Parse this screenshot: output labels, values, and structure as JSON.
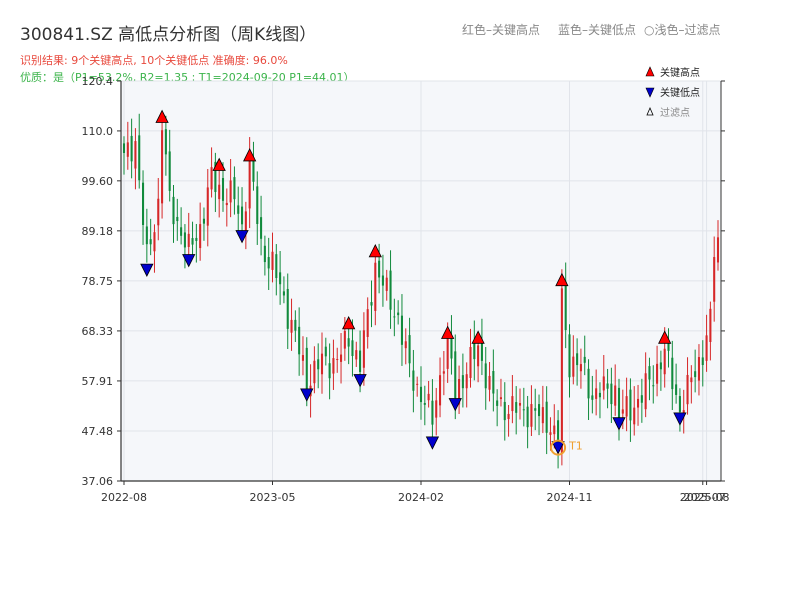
{
  "header": {
    "title": "300841.SZ 高低点分析图（周K线图）",
    "legend_red": "红色–关键高点",
    "legend_blue": "蓝色–关键低点",
    "legend_light": "○浅色–过滤点",
    "result_line": "识别结果: 9个关键高点, 10个关键低点  准确度: 96.0%",
    "quality_line": "优质：是（P1=53.2%, R2=1.35 ; T1=2024-09-20 P1=44.01）"
  },
  "colors": {
    "up": "#d62728",
    "down": "#118a3c",
    "high_marker": "#ff0000",
    "low_marker": "#0000cc",
    "t1_ring": "#f0a030",
    "result_text": "#e8493d",
    "quality_text": "#3cb44b"
  },
  "chart_data": {
    "type": "candlestick",
    "title": "300841.SZ 高低点分析图（周K线图）",
    "y_ticks": [
      "37.06",
      "47.48",
      "57.91",
      "68.33",
      "78.75",
      "89.18",
      "99.60",
      "110.0",
      "120.4"
    ],
    "y_range": [
      37.06,
      120.4
    ],
    "x_ticks": [
      "2022-08",
      "2023-05",
      "2024-02",
      "2024-11",
      "2025-07",
      "2025-08"
    ],
    "x_tick_weeks": [
      0,
      39,
      78,
      117,
      152,
      153
    ],
    "grid": true,
    "legend": {
      "placement": "top-right",
      "entries": [
        {
          "label": "关键高点",
          "marker": "triangle-up",
          "color": "#ff0000"
        },
        {
          "label": "关键低点",
          "marker": "triangle-down",
          "color": "#0000cc"
        },
        {
          "label": "过滤点",
          "marker": "triangle-up-hollow",
          "color": "#000000"
        }
      ]
    },
    "key_points": {
      "highs": [
        {
          "week": 10,
          "value": 113
        },
        {
          "week": 25,
          "value": 103
        },
        {
          "week": 33,
          "value": 105
        },
        {
          "week": 66,
          "value": 85
        },
        {
          "week": 59,
          "value": 70
        },
        {
          "week": 85,
          "value": 68
        },
        {
          "week": 93,
          "value": 67
        },
        {
          "week": 115,
          "value": 79
        },
        {
          "week": 142,
          "value": 67
        }
      ],
      "lows": [
        {
          "week": 6,
          "value": 81
        },
        {
          "week": 17,
          "value": 83
        },
        {
          "week": 31,
          "value": 88
        },
        {
          "week": 48,
          "value": 55
        },
        {
          "week": 62,
          "value": 58
        },
        {
          "week": 81,
          "value": 45
        },
        {
          "week": 87,
          "value": 53
        },
        {
          "week": 114,
          "value": 44
        },
        {
          "week": 130,
          "value": 49
        },
        {
          "week": 146,
          "value": 50
        }
      ]
    },
    "annotation": {
      "label": "T1",
      "week": 114,
      "value": 44.01
    },
    "anchors": [
      [
        0,
        104
      ],
      [
        3,
        108
      ],
      [
        6,
        83
      ],
      [
        9,
        95
      ],
      [
        10,
        112
      ],
      [
        12,
        95
      ],
      [
        14,
        91
      ],
      [
        17,
        85
      ],
      [
        20,
        90
      ],
      [
        23,
        100
      ],
      [
        26,
        97
      ],
      [
        29,
        96
      ],
      [
        31,
        90
      ],
      [
        33,
        103
      ],
      [
        36,
        86
      ],
      [
        39,
        82
      ],
      [
        42,
        75
      ],
      [
        45,
        67
      ],
      [
        48,
        58
      ],
      [
        52,
        62
      ],
      [
        56,
        62
      ],
      [
        59,
        67
      ],
      [
        62,
        61
      ],
      [
        66,
        82
      ],
      [
        69,
        76
      ],
      [
        72,
        71
      ],
      [
        75,
        60
      ],
      [
        78,
        55
      ],
      [
        81,
        50
      ],
      [
        83,
        59
      ],
      [
        85,
        66
      ],
      [
        87,
        56
      ],
      [
        90,
        60
      ],
      [
        93,
        65
      ],
      [
        97,
        54
      ],
      [
        101,
        52
      ],
      [
        105,
        52
      ],
      [
        108,
        51
      ],
      [
        111,
        50
      ],
      [
        114,
        45
      ],
      [
        115,
        75
      ],
      [
        117,
        62
      ],
      [
        120,
        61
      ],
      [
        123,
        55
      ],
      [
        126,
        56
      ],
      [
        129,
        56
      ],
      [
        130,
        51
      ],
      [
        133,
        52
      ],
      [
        136,
        55
      ],
      [
        139,
        59
      ],
      [
        142,
        64
      ],
      [
        146,
        52
      ],
      [
        149,
        58
      ],
      [
        152,
        64
      ],
      [
        154,
        70
      ],
      [
        155,
        85
      ],
      [
        156,
        87
      ]
    ]
  }
}
